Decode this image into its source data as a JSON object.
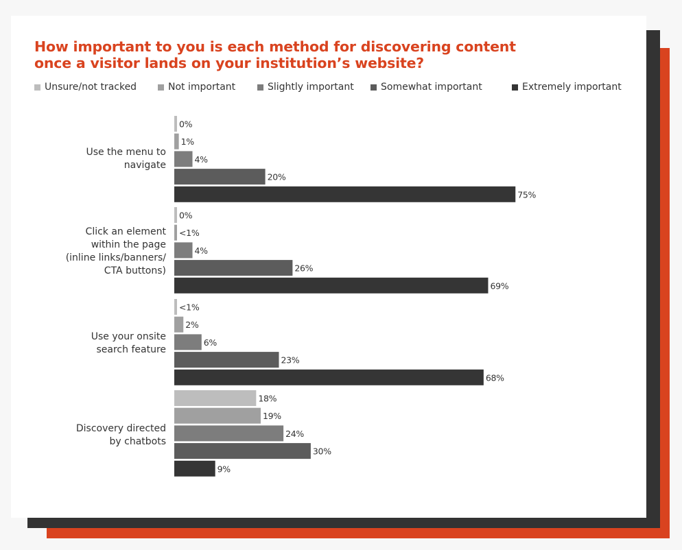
{
  "chart_data": {
    "type": "bar",
    "orientation": "horizontal",
    "title": "How important to you is each method for discovering content once a visitor lands on your institution’s website?",
    "categories": [
      "Use the menu to navigate",
      "Click an element within the page (inline links/banners/ CTA buttons)",
      "Use your onsite search feature",
      "Discovery directed by chatbots"
    ],
    "series": [
      {
        "name": "Unsure/not tracked",
        "color": "#bdbdbd",
        "values": [
          0,
          0.5,
          0.5,
          18
        ],
        "labels": [
          "0%",
          "0%",
          "<1%",
          "18%"
        ]
      },
      {
        "name": "Not important",
        "color": "#a0a0a0",
        "values": [
          1,
          0.5,
          2,
          19
        ],
        "labels": [
          "1%",
          "<1%",
          "2%",
          "19%"
        ]
      },
      {
        "name": "Slightly important",
        "color": "#7d7d7d",
        "values": [
          4,
          4,
          6,
          24
        ],
        "labels": [
          "4%",
          "4%",
          "6%",
          "24%"
        ]
      },
      {
        "name": "Somewhat important",
        "color": "#5c5c5c",
        "values": [
          20,
          26,
          23,
          30
        ],
        "labels": [
          "20%",
          "26%",
          "23%",
          "30%"
        ]
      },
      {
        "name": "Extremely important",
        "color": "#353535",
        "values": [
          75,
          69,
          68,
          9
        ],
        "labels": [
          "75%",
          "69%",
          "68%",
          "9%"
        ]
      }
    ],
    "xlim": [
      0,
      100
    ],
    "grid": false,
    "legend_position": "top"
  }
}
